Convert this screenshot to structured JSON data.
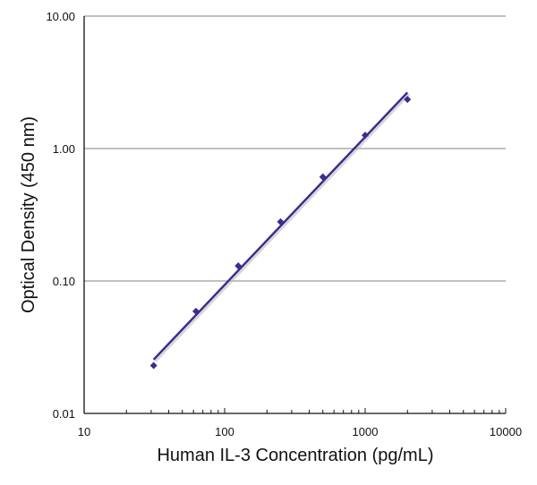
{
  "chart_data": {
    "type": "scatter",
    "title": "",
    "xlabel": "Human IL-3 Concentration (pg/mL)",
    "ylabel": "Optical Density (450 nm)",
    "x_scale": "log",
    "y_scale": "log",
    "xlim": [
      10,
      10000
    ],
    "ylim": [
      0.01,
      10
    ],
    "x_ticks": [
      10,
      100,
      1000,
      10000
    ],
    "x_tick_labels": [
      "10",
      "100",
      "1000",
      "10000"
    ],
    "y_ticks": [
      0.01,
      0.1,
      1,
      10
    ],
    "y_tick_labels": [
      "0.01",
      "0.10",
      "1.00",
      "10.00"
    ],
    "grid": "horizontal major",
    "color": "#3d2b8e",
    "points": {
      "x": [
        31.25,
        62.5,
        125,
        250,
        500,
        1000,
        2000
      ],
      "y": [
        0.023,
        0.059,
        0.13,
        0.28,
        0.61,
        1.26,
        2.35
      ]
    },
    "fit_line": {
      "x": [
        31.25,
        2000
      ],
      "y": [
        0.0255,
        2.65
      ]
    }
  }
}
